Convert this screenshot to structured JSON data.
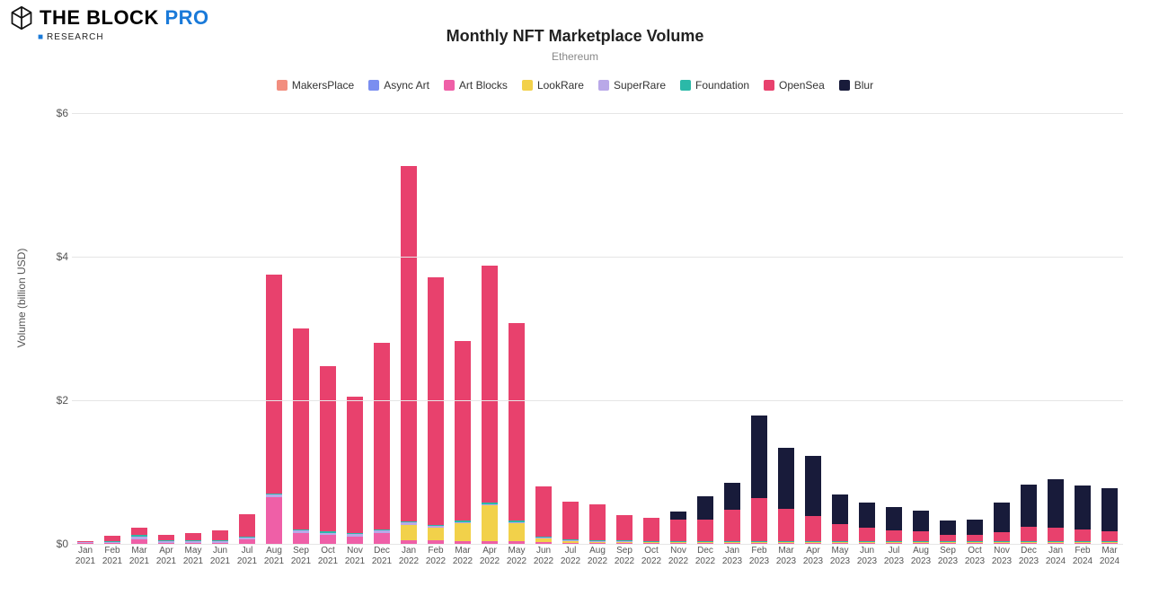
{
  "branding": {
    "name": "THE BLOCK",
    "suffix": "PRO",
    "sub": "RESEARCH",
    "suffix_color": "#1a7ad9",
    "text_color": "#111111"
  },
  "chart": {
    "type": "stacked-bar",
    "title": "Monthly NFT Marketplace Volume",
    "title_fontsize": 18,
    "subtitle": "Ethereum",
    "subtitle_fontsize": 12,
    "ylabel": "Volume (billion USD)",
    "ylabel_fontsize": 12,
    "ylim": [
      0,
      6
    ],
    "ytick_step": 2,
    "ytick_prefix": "$",
    "background_color": "#ffffff",
    "grid_color": "#e5e5e5",
    "bar_width_ratio": 0.62,
    "series": [
      {
        "id": "MakersPlace",
        "label": "MakersPlace",
        "color": "#f28e7f"
      },
      {
        "id": "AsyncArt",
        "label": "Async Art",
        "color": "#7a8ef0"
      },
      {
        "id": "ArtBlocks",
        "label": "Art Blocks",
        "color": "#ef5fa7"
      },
      {
        "id": "LookRare",
        "label": "LookRare",
        "color": "#f2d14a"
      },
      {
        "id": "SuperRare",
        "label": "SuperRare",
        "color": "#b9a8e8"
      },
      {
        "id": "Foundation",
        "label": "Foundation",
        "color": "#2bb9a8"
      },
      {
        "id": "OpenSea",
        "label": "OpenSea",
        "color": "#e8416d"
      },
      {
        "id": "Blur",
        "label": "Blur",
        "color": "#181b3a"
      }
    ],
    "categories": [
      "Jan 2021",
      "Feb 2021",
      "Mar 2021",
      "Apr 2021",
      "May 2021",
      "Jun 2021",
      "Jul 2021",
      "Aug 2021",
      "Sep 2021",
      "Oct 2021",
      "Nov 2021",
      "Dec 2021",
      "Jan 2022",
      "Feb 2022",
      "Mar 2022",
      "Apr 2022",
      "May 2022",
      "Jun 2022",
      "Jul 2022",
      "Aug 2022",
      "Sep 2022",
      "Oct 2022",
      "Nov 2022",
      "Dec 2022",
      "Jan 2023",
      "Feb 2023",
      "Mar 2023",
      "Apr 2023",
      "May 2023",
      "Jun 2023",
      "Jul 2023",
      "Aug 2023",
      "Sep 2023",
      "Oct 2023",
      "Nov 2023",
      "Dec 2023",
      "Jan 2024",
      "Feb 2024",
      "Mar 2024"
    ],
    "values": {
      "MakersPlace": [
        0.005,
        0.005,
        0.005,
        0.005,
        0.005,
        0.005,
        0.005,
        0.005,
        0.005,
        0.005,
        0.005,
        0.005,
        0.005,
        0.005,
        0.005,
        0.005,
        0.005,
        0,
        0,
        0,
        0,
        0,
        0,
        0,
        0,
        0,
        0,
        0,
        0,
        0,
        0,
        0,
        0,
        0,
        0,
        0,
        0,
        0,
        0
      ],
      "AsyncArt": [
        0,
        0,
        0,
        0,
        0,
        0,
        0,
        0,
        0,
        0,
        0,
        0,
        0,
        0,
        0,
        0,
        0,
        0,
        0,
        0,
        0,
        0,
        0,
        0,
        0,
        0,
        0,
        0,
        0,
        0,
        0,
        0,
        0,
        0,
        0,
        0,
        0,
        0,
        0
      ],
      "ArtBlocks": [
        0.01,
        0.01,
        0.06,
        0.01,
        0.01,
        0.01,
        0.06,
        0.65,
        0.15,
        0.12,
        0.1,
        0.15,
        0.04,
        0.04,
        0.03,
        0.03,
        0.03,
        0.02,
        0.01,
        0.01,
        0.01,
        0.01,
        0.01,
        0.01,
        0.01,
        0.01,
        0.01,
        0.01,
        0.01,
        0.01,
        0.01,
        0.01,
        0.01,
        0.01,
        0.01,
        0.01,
        0.01,
        0.01,
        0.01
      ],
      "LookRare": [
        0,
        0,
        0,
        0,
        0,
        0,
        0,
        0,
        0,
        0,
        0,
        0,
        0.22,
        0.18,
        0.25,
        0.5,
        0.25,
        0.06,
        0.03,
        0.02,
        0.02,
        0.01,
        0.01,
        0.01,
        0.01,
        0.01,
        0.01,
        0.01,
        0.01,
        0.01,
        0.01,
        0.01,
        0.01,
        0.01,
        0.01,
        0.01,
        0.01,
        0.01,
        0.01
      ],
      "SuperRare": [
        0.005,
        0.01,
        0.04,
        0.02,
        0.02,
        0.02,
        0.02,
        0.03,
        0.03,
        0.03,
        0.03,
        0.03,
        0.03,
        0.02,
        0.02,
        0.02,
        0.02,
        0.01,
        0.01,
        0.01,
        0.01,
        0.01,
        0.01,
        0.01,
        0.01,
        0.01,
        0.01,
        0.01,
        0.01,
        0.01,
        0.01,
        0.01,
        0.01,
        0.01,
        0.01,
        0.01,
        0.01,
        0.01,
        0.01
      ],
      "Foundation": [
        0,
        0.01,
        0.02,
        0.02,
        0.01,
        0.01,
        0.01,
        0.02,
        0.02,
        0.02,
        0.02,
        0.02,
        0.02,
        0.02,
        0.02,
        0.02,
        0.02,
        0.01,
        0.01,
        0.01,
        0.01,
        0.01,
        0.01,
        0.01,
        0.01,
        0.01,
        0.01,
        0.01,
        0.01,
        0.01,
        0.01,
        0.01,
        0.01,
        0.01,
        0.01,
        0.01,
        0.01,
        0.01,
        0.01
      ],
      "OpenSea": [
        0.02,
        0.08,
        0.1,
        0.07,
        0.1,
        0.14,
        0.32,
        3.05,
        2.8,
        2.3,
        1.9,
        2.6,
        4.95,
        3.45,
        2.5,
        3.3,
        2.75,
        0.7,
        0.53,
        0.5,
        0.35,
        0.32,
        0.3,
        0.3,
        0.44,
        0.6,
        0.45,
        0.35,
        0.23,
        0.18,
        0.15,
        0.13,
        0.09,
        0.08,
        0.12,
        0.2,
        0.18,
        0.16,
        0.14
      ],
      "Blur": [
        0,
        0,
        0,
        0,
        0,
        0,
        0,
        0,
        0,
        0,
        0,
        0,
        0,
        0,
        0,
        0,
        0,
        0,
        0,
        0,
        0,
        0,
        0.11,
        0.32,
        0.37,
        1.15,
        0.85,
        0.83,
        0.42,
        0.35,
        0.32,
        0.29,
        0.2,
        0.22,
        0.42,
        0.58,
        0.68,
        0.61,
        0.6
      ]
    },
    "plot_order": [
      "Blur",
      "OpenSea",
      "Foundation",
      "SuperRare",
      "LookRare",
      "ArtBlocks",
      "AsyncArt",
      "MakersPlace"
    ]
  }
}
